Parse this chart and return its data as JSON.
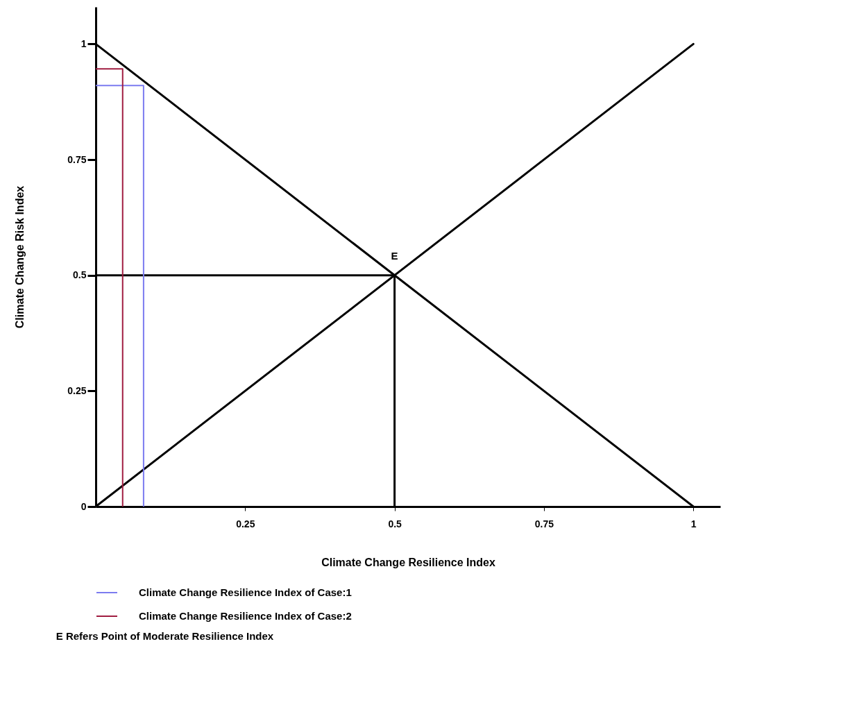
{
  "chart_data": {
    "type": "line",
    "xlabel": "Climate Change Resilience Index",
    "ylabel": "Climate Change Risk Index",
    "xlim": [
      0,
      1.045
    ],
    "ylim": [
      0,
      1.08
    ],
    "xticks": [
      0.25,
      0.5,
      0.75,
      1
    ],
    "yticks": [
      0,
      0.25,
      0.5,
      0.75,
      1
    ],
    "grid": false,
    "legend": "bottom",
    "series": [
      {
        "color": "#000000",
        "x": [
          0,
          1
        ],
        "values": [
          1,
          0
        ]
      },
      {
        "color": "#000000",
        "x": [
          0,
          1
        ],
        "values": [
          0,
          1
        ]
      },
      {
        "color": "#000000",
        "x": [
          0,
          0.5,
          0.5
        ],
        "values": [
          0.5,
          0.5,
          0
        ]
      },
      {
        "name": "Climate Change Resilience Index of Case:1",
        "color": "#7b7bf0",
        "x": [
          0.08,
          0.08,
          0
        ],
        "values": [
          0,
          0.91,
          0.91
        ]
      },
      {
        "name": "Climate Change Resilience Index of Case:2",
        "color": "#a01c40",
        "x": [
          0.045,
          0.045,
          0
        ],
        "values": [
          0,
          0.946,
          0.946
        ]
      }
    ],
    "annotations": [
      {
        "text": "E",
        "x": 0.5,
        "y": 0.5
      },
      "E      Refers Point of Moderate Resilience Index"
    ]
  }
}
